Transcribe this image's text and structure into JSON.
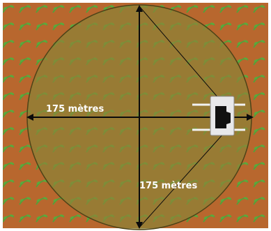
{
  "diagram": {
    "labels": {
      "horizontal": "175 mètres",
      "vertical": "175 mètres"
    },
    "colors": {
      "field_brown": "#b8672e",
      "circle_fill": "#8c8438",
      "circle_stroke": "#4d4318",
      "plant_green": "#4fa33a",
      "arrow": "#0b0b0b",
      "label": "#ffffff",
      "device_body": "#e8e8ea",
      "device_dark": "#111111"
    },
    "icons": {
      "device": "irrigation-pivot-tower-icon",
      "plants": "crop-seedling-icon"
    }
  }
}
